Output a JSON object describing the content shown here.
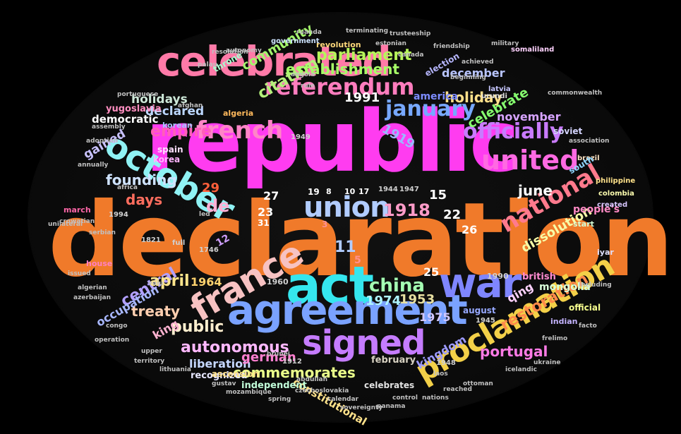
{
  "words": [
    {
      "text": "declaration",
      "color": "#f07a2a"
    },
    {
      "text": "republic",
      "color": "#ff3cf0"
    },
    {
      "text": "celebrated",
      "color": "#ff7aa8"
    },
    {
      "text": "act",
      "color": "#35e6ee"
    },
    {
      "text": "agreement",
      "color": "#7aa2ff"
    },
    {
      "text": "war",
      "color": "#7f86ff"
    },
    {
      "text": "october",
      "color": "#8ff2f4"
    },
    {
      "text": "france",
      "color": "#f7c2c2"
    },
    {
      "text": "signed",
      "color": "#c57cff"
    },
    {
      "text": "proclamation",
      "color": "#f3d048"
    },
    {
      "text": "united",
      "color": "#ff6ae2"
    },
    {
      "text": "national",
      "color": "#ff7a8d"
    },
    {
      "text": "officially",
      "color": "#c97bff"
    },
    {
      "text": "referendum",
      "color": "#ff7dbe"
    },
    {
      "text": "french",
      "color": "#ff85c8"
    },
    {
      "text": "union",
      "color": "#b1ccff"
    },
    {
      "text": "january",
      "color": "#77a8ff"
    },
    {
      "text": "empire",
      "color": "#ff5fb8"
    },
    {
      "text": "citation",
      "color": "#b4f07a"
    },
    {
      "text": "parliament",
      "color": "#b6f55a"
    },
    {
      "text": "establishment",
      "color": "#a7ff67"
    },
    {
      "text": "community",
      "color": "#a4f56d"
    },
    {
      "text": "celebrate",
      "color": "#86ff6f"
    },
    {
      "text": "holiday",
      "color": "#ffe08a"
    },
    {
      "text": "holidays",
      "color": "#cde8d8"
    },
    {
      "text": "declared",
      "color": "#bcd7ff"
    },
    {
      "text": "democratic",
      "color": "#ffffff"
    },
    {
      "text": "gained",
      "color": "#c8c1ff"
    },
    {
      "text": "founding",
      "color": "#cfe3ff"
    },
    {
      "text": "days",
      "color": "#ff6d5e"
    },
    {
      "text": "de",
      "color": "#ffb0d5"
    },
    {
      "text": "central",
      "color": "#b2a0ff"
    },
    {
      "text": "april",
      "color": "#ffe58c"
    },
    {
      "text": "1964",
      "color": "#ffd36e"
    },
    {
      "text": "china",
      "color": "#a5ffb3"
    },
    {
      "text": "1918",
      "color": "#ff9bc8"
    },
    {
      "text": "1991",
      "color": "#ffffff"
    },
    {
      "text": "1919",
      "color": "#9bb8ff"
    },
    {
      "text": "1974",
      "color": "#aff5ff"
    },
    {
      "text": "1953",
      "color": "#e7dfa1"
    },
    {
      "text": "1975",
      "color": "#d1c7ff"
    },
    {
      "text": "june",
      "color": "#fff"
    },
    {
      "text": "november",
      "color": "#d7a4ff"
    },
    {
      "text": "december",
      "color": "#b9c5ff"
    },
    {
      "text": "america",
      "color": "#7d8cff"
    },
    {
      "text": "treaty",
      "color": "#ffcfb0"
    },
    {
      "text": "occupation",
      "color": "#a8b7ff"
    },
    {
      "text": "public",
      "color": "#ffefcf"
    },
    {
      "text": "king",
      "color": "#ffb3d1"
    },
    {
      "text": "autonomous",
      "color": "#ffb8ff"
    },
    {
      "text": "liberation",
      "color": "#c6d8ff"
    },
    {
      "text": "german",
      "color": "#ff7fd0"
    },
    {
      "text": "commemorates",
      "color": "#eaff8a"
    },
    {
      "text": "constitutional",
      "color": "#ffe28a"
    },
    {
      "text": "kingdom",
      "color": "#9d9bff"
    },
    {
      "text": "portugal",
      "color": "#ff7be6"
    },
    {
      "text": "restoration",
      "color": "#ff8a4a"
    },
    {
      "text": "dissolution",
      "color": "#f8ffa8"
    },
    {
      "text": "qing",
      "color": "#ffd2ff"
    },
    {
      "text": "yugoslavia",
      "color": "#ff8ec0"
    },
    {
      "text": "recognized",
      "color": "#e7e7ff"
    },
    {
      "text": "independent",
      "color": "#c2ffda"
    },
    {
      "text": "february",
      "color": "#d8d2c2"
    },
    {
      "text": "celebrates",
      "color": "#e3e3e3"
    },
    {
      "text": "people's",
      "color": "#ff8ac5"
    },
    {
      "text": "mongolia",
      "color": "#d9ffd9"
    },
    {
      "text": "british",
      "color": "#ff8bd0"
    },
    {
      "text": "august",
      "color": "#96a8ff"
    },
    {
      "text": "official",
      "color": "#f8ff8f"
    },
    {
      "text": "indian",
      "color": "#c4b3ff"
    },
    {
      "text": "korea",
      "color": "#ffb5ff"
    },
    {
      "text": "spain",
      "color": "#ffe0ff"
    },
    {
      "text": "korean",
      "color": "#a8c4ff"
    },
    {
      "text": "algeria",
      "color": "#ffb95c"
    },
    {
      "text": "soviet",
      "color": "#d5d5ff"
    },
    {
      "text": "march",
      "color": "#ff66a8"
    },
    {
      "text": "revolution",
      "color": "#ffd97b"
    },
    {
      "text": "election",
      "color": "#b7b7ff"
    },
    {
      "text": "throne",
      "color": "#a8ffd0"
    },
    {
      "text": "government",
      "color": "#cde4ff"
    },
    {
      "text": "latvia",
      "color": "#c7c7ff"
    },
    {
      "text": "urundi",
      "color": "#dedede"
    },
    {
      "text": "somaliland",
      "color": "#ffd2ff"
    },
    {
      "text": "brazil",
      "color": "#ffe4c4"
    },
    {
      "text": "colombia",
      "color": "#ffffb0"
    },
    {
      "text": "philippine",
      "color": "#ffe28a"
    },
    {
      "text": "south",
      "color": "#8fd6ff"
    },
    {
      "text": "start",
      "color": "#d6ffd6"
    },
    {
      "text": "created",
      "color": "#d8c8ff"
    },
    {
      "text": "ascension",
      "color": "#ffe08a"
    },
    {
      "text": "house",
      "color": "#ff80c0"
    },
    {
      "text": "iyar",
      "color": "#e0e0ff"
    },
    {
      "text": "full",
      "color": "#d0d0d0"
    },
    {
      "text": "1821",
      "color": "#d0d0d0"
    },
    {
      "text": "1746",
      "color": "#d0d0d0"
    },
    {
      "text": "1990",
      "color": "#d0d0d0"
    },
    {
      "text": "1960",
      "color": "#d0d0d0"
    },
    {
      "text": "1949",
      "color": "#d0d0d0"
    },
    {
      "text": "1944",
      "color": "#d0d0d0"
    },
    {
      "text": "1947",
      "color": "#d0d0d0"
    },
    {
      "text": "1994",
      "color": "#d0d0d0"
    },
    {
      "text": "1945",
      "color": "#d0d0d0"
    },
    {
      "text": "1912",
      "color": "#d0d0d0"
    },
    {
      "text": "1948",
      "color": "#d0d0d0"
    },
    {
      "text": "29",
      "color": "#ff5f3a"
    },
    {
      "text": "27",
      "color": "#ffffff"
    },
    {
      "text": "23",
      "color": "#ffffff"
    },
    {
      "text": "22",
      "color": "#ffffff"
    },
    {
      "text": "26",
      "color": "#ffffff"
    },
    {
      "text": "25",
      "color": "#ffffff"
    },
    {
      "text": "15",
      "color": "#ffffff"
    },
    {
      "text": "11",
      "color": "#b1ccff"
    },
    {
      "text": "12",
      "color": "#d0a0ff"
    },
    {
      "text": "31",
      "color": "#ffffff"
    },
    {
      "text": "19",
      "color": "#ffffff"
    },
    {
      "text": "10",
      "color": "#ffffff"
    },
    {
      "text": "17",
      "color": "#ffffff"
    },
    {
      "text": "8",
      "color": "#ffffff"
    },
    {
      "text": "5",
      "color": "#ff9090"
    },
    {
      "text": "3",
      "color": "#ff9090"
    },
    {
      "text": "crowatian",
      "color": "#c0c0c0"
    },
    {
      "text": "serbian",
      "color": "#c0c0c0"
    },
    {
      "text": "africa",
      "color": "#c0c0c0"
    },
    {
      "text": "assembly",
      "color": "#c0c0c0"
    },
    {
      "text": "adoption",
      "color": "#c0c0c0"
    },
    {
      "text": "algerian",
      "color": "#c0c0c0"
    },
    {
      "text": "azerbaijan",
      "color": "#c0c0c0"
    },
    {
      "text": "issued",
      "color": "#c0c0c0"
    },
    {
      "text": "congo",
      "color": "#c0c0c0"
    },
    {
      "text": "operation",
      "color": "#c0c0c0"
    },
    {
      "text": "territory",
      "color": "#c0c0c0"
    },
    {
      "text": "lithuania",
      "color": "#c0c0c0"
    },
    {
      "text": "gustav",
      "color": "#c0c0c0"
    },
    {
      "text": "mozambique",
      "color": "#c0c0c0"
    },
    {
      "text": "spring",
      "color": "#c0c0c0"
    },
    {
      "text": "czechoslovakia",
      "color": "#c0c0c0"
    },
    {
      "text": "calendar",
      "color": "#c0c0c0"
    },
    {
      "text": "control",
      "color": "#c0c0c0"
    },
    {
      "text": "nations",
      "color": "#c0c0c0"
    },
    {
      "text": "reached",
      "color": "#c0c0c0"
    },
    {
      "text": "ottoman",
      "color": "#c0c0c0"
    },
    {
      "text": "panama",
      "color": "#c0c0c0"
    },
    {
      "text": "sovereignty",
      "color": "#c0c0c0"
    },
    {
      "text": "icelandic",
      "color": "#c0c0c0"
    },
    {
      "text": "ukraine",
      "color": "#c0c0c0"
    },
    {
      "text": "frelimo",
      "color": "#c0c0c0"
    },
    {
      "text": "facto",
      "color": "#c0c0c0"
    },
    {
      "text": "including",
      "color": "#c0c0c0"
    },
    {
      "text": "association",
      "color": "#c0c0c0"
    },
    {
      "text": "commonwealth",
      "color": "#c0c0c0"
    },
    {
      "text": "military",
      "color": "#c0c0c0"
    },
    {
      "text": "achieved",
      "color": "#c0c0c0"
    },
    {
      "text": "friendship",
      "color": "#c0c0c0"
    },
    {
      "text": "trusteeship",
      "color": "#c0c0c0"
    },
    {
      "text": "terminating",
      "color": "#c0c0c0"
    },
    {
      "text": "ruanda",
      "color": "#c0c0c0"
    },
    {
      "text": "resolution",
      "color": "#c0c0c0"
    },
    {
      "text": "estonian",
      "color": "#c0c0c0"
    },
    {
      "text": "beginning",
      "color": "#c0c0c0"
    },
    {
      "text": "palau",
      "color": "#c0c0c0"
    },
    {
      "text": "autonomy",
      "color": "#c0c0c0"
    },
    {
      "text": "abdullah",
      "color": "#c0c0c0"
    },
    {
      "text": "brunei",
      "color": "#c0c0c0"
    },
    {
      "text": "laos",
      "color": "#c0c0c0"
    },
    {
      "text": "upper",
      "color": "#c0c0c0"
    },
    {
      "text": "vaiu",
      "color": "#c0c0c0"
    },
    {
      "text": "annually",
      "color": "#c0c0c0"
    },
    {
      "text": "unilateral",
      "color": "#c0c0c0"
    },
    {
      "text": "portuguese",
      "color": "#c0c0c0"
    },
    {
      "text": "angola",
      "color": "#c0c0c0"
    },
    {
      "text": "afghan",
      "color": "#c0c0c0"
    },
    {
      "text": "canada",
      "color": "#c0c0c0"
    },
    {
      "text": "rule",
      "color": "#c0c0c0"
    },
    {
      "text": "led",
      "color": "#c0c0c0"
    }
  ]
}
